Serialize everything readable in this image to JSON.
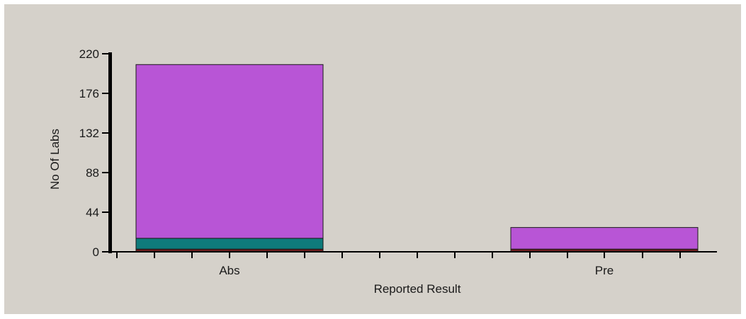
{
  "chart_data": {
    "type": "bar",
    "stacked": true,
    "categories": [
      "Abs",
      "Pre"
    ],
    "series": [
      {
        "color": "#6b1d1d",
        "values": [
          3,
          3
        ]
      },
      {
        "color": "#0f7b7b",
        "values": [
          12,
          0
        ]
      },
      {
        "color": "#b855d6",
        "values": [
          193,
          24
        ]
      }
    ],
    "xlabel": "Reported Result",
    "ylabel": "No Of Labs",
    "ylim": [
      0,
      220
    ],
    "yticks": [
      0,
      44,
      88,
      132,
      176,
      220
    ],
    "grid": false
  }
}
